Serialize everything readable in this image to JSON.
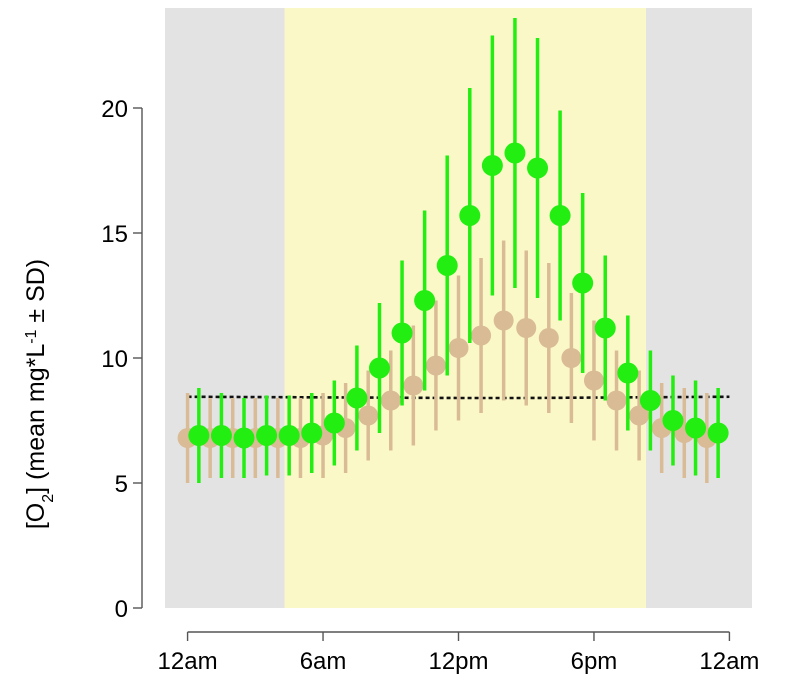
{
  "colors": {
    "night": "#e3e3e3",
    "day": "#fbf8c8",
    "green_series": "#22ee11",
    "tan_series": "#d9bb96",
    "axis": "#555555",
    "dashed": "#111111"
  },
  "chart_data": {
    "type": "scatter",
    "title": "",
    "ylabel_parts": [
      "[O",
      "2",
      "] (mean mg*L",
      "-1",
      " ± SD)"
    ],
    "xlabel": "",
    "x_ticks": [
      {
        "hour": 0,
        "label": "12am"
      },
      {
        "hour": 6,
        "label": "6am"
      },
      {
        "hour": 12,
        "label": "12pm"
      },
      {
        "hour": 18,
        "label": "6pm"
      },
      {
        "hour": 24,
        "label": "12am"
      }
    ],
    "y_ticks": [
      0,
      5,
      10,
      15,
      20
    ],
    "xlim": [
      -1,
      25
    ],
    "ylim": [
      0,
      24
    ],
    "night_bands": [
      [
        -1,
        4.3
      ],
      [
        20.3,
        25
      ]
    ],
    "day_band": [
      4.3,
      20.3
    ],
    "reference_line": {
      "style": "dashed",
      "y_start": 8.45,
      "y_mid": 8.4,
      "y_end": 8.45
    },
    "series": [
      {
        "color": "green",
        "points": [
          {
            "x": 0.5,
            "y": 6.9,
            "sd": 1.9
          },
          {
            "x": 1.5,
            "y": 6.9,
            "sd": 1.7
          },
          {
            "x": 2.5,
            "y": 6.8,
            "sd": 1.6
          },
          {
            "x": 3.5,
            "y": 6.9,
            "sd": 1.6
          },
          {
            "x": 4.5,
            "y": 6.9,
            "sd": 1.6
          },
          {
            "x": 5.5,
            "y": 7.0,
            "sd": 1.6
          },
          {
            "x": 6.5,
            "y": 7.4,
            "sd": 1.7
          },
          {
            "x": 7.5,
            "y": 8.4,
            "sd": 2.1
          },
          {
            "x": 8.5,
            "y": 9.6,
            "sd": 2.6
          },
          {
            "x": 9.5,
            "y": 11.0,
            "sd": 2.9
          },
          {
            "x": 10.5,
            "y": 12.3,
            "sd": 3.6
          },
          {
            "x": 11.5,
            "y": 13.7,
            "sd": 4.4
          },
          {
            "x": 12.5,
            "y": 15.7,
            "sd": 5.1
          },
          {
            "x": 13.5,
            "y": 17.7,
            "sd": 5.2
          },
          {
            "x": 14.5,
            "y": 18.2,
            "sd": 5.4
          },
          {
            "x": 15.5,
            "y": 17.6,
            "sd": 5.2
          },
          {
            "x": 16.5,
            "y": 15.7,
            "sd": 4.2
          },
          {
            "x": 17.5,
            "y": 13.0,
            "sd": 3.6
          },
          {
            "x": 18.5,
            "y": 11.2,
            "sd": 2.9
          },
          {
            "x": 19.5,
            "y": 9.4,
            "sd": 2.3
          },
          {
            "x": 20.5,
            "y": 8.3,
            "sd": 2.0
          },
          {
            "x": 21.5,
            "y": 7.5,
            "sd": 1.8
          },
          {
            "x": 22.5,
            "y": 7.2,
            "sd": 1.9
          },
          {
            "x": 23.5,
            "y": 7.0,
            "sd": 1.8
          }
        ]
      },
      {
        "color": "tan",
        "points": [
          {
            "x": 0,
            "y": 6.8,
            "sd": 1.8
          },
          {
            "x": 1,
            "y": 6.8,
            "sd": 1.6
          },
          {
            "x": 2,
            "y": 6.8,
            "sd": 1.6
          },
          {
            "x": 3,
            "y": 6.8,
            "sd": 1.6
          },
          {
            "x": 4,
            "y": 6.8,
            "sd": 1.6
          },
          {
            "x": 5,
            "y": 6.8,
            "sd": 1.6
          },
          {
            "x": 6,
            "y": 6.9,
            "sd": 1.7
          },
          {
            "x": 7,
            "y": 7.2,
            "sd": 1.8
          },
          {
            "x": 8,
            "y": 7.7,
            "sd": 1.8
          },
          {
            "x": 9,
            "y": 8.3,
            "sd": 2.0
          },
          {
            "x": 10,
            "y": 8.9,
            "sd": 2.4
          },
          {
            "x": 11,
            "y": 9.7,
            "sd": 2.6
          },
          {
            "x": 12,
            "y": 10.4,
            "sd": 2.9
          },
          {
            "x": 13,
            "y": 10.9,
            "sd": 3.1
          },
          {
            "x": 14,
            "y": 11.5,
            "sd": 3.2
          },
          {
            "x": 15,
            "y": 11.2,
            "sd": 3.1
          },
          {
            "x": 16,
            "y": 10.8,
            "sd": 3.0
          },
          {
            "x": 17,
            "y": 10.0,
            "sd": 2.6
          },
          {
            "x": 18,
            "y": 9.1,
            "sd": 2.4
          },
          {
            "x": 19,
            "y": 8.3,
            "sd": 2.0
          },
          {
            "x": 20,
            "y": 7.7,
            "sd": 1.8
          },
          {
            "x": 21,
            "y": 7.2,
            "sd": 1.8
          },
          {
            "x": 22,
            "y": 7.0,
            "sd": 1.8
          },
          {
            "x": 23,
            "y": 6.8,
            "sd": 1.8
          }
        ]
      }
    ]
  }
}
